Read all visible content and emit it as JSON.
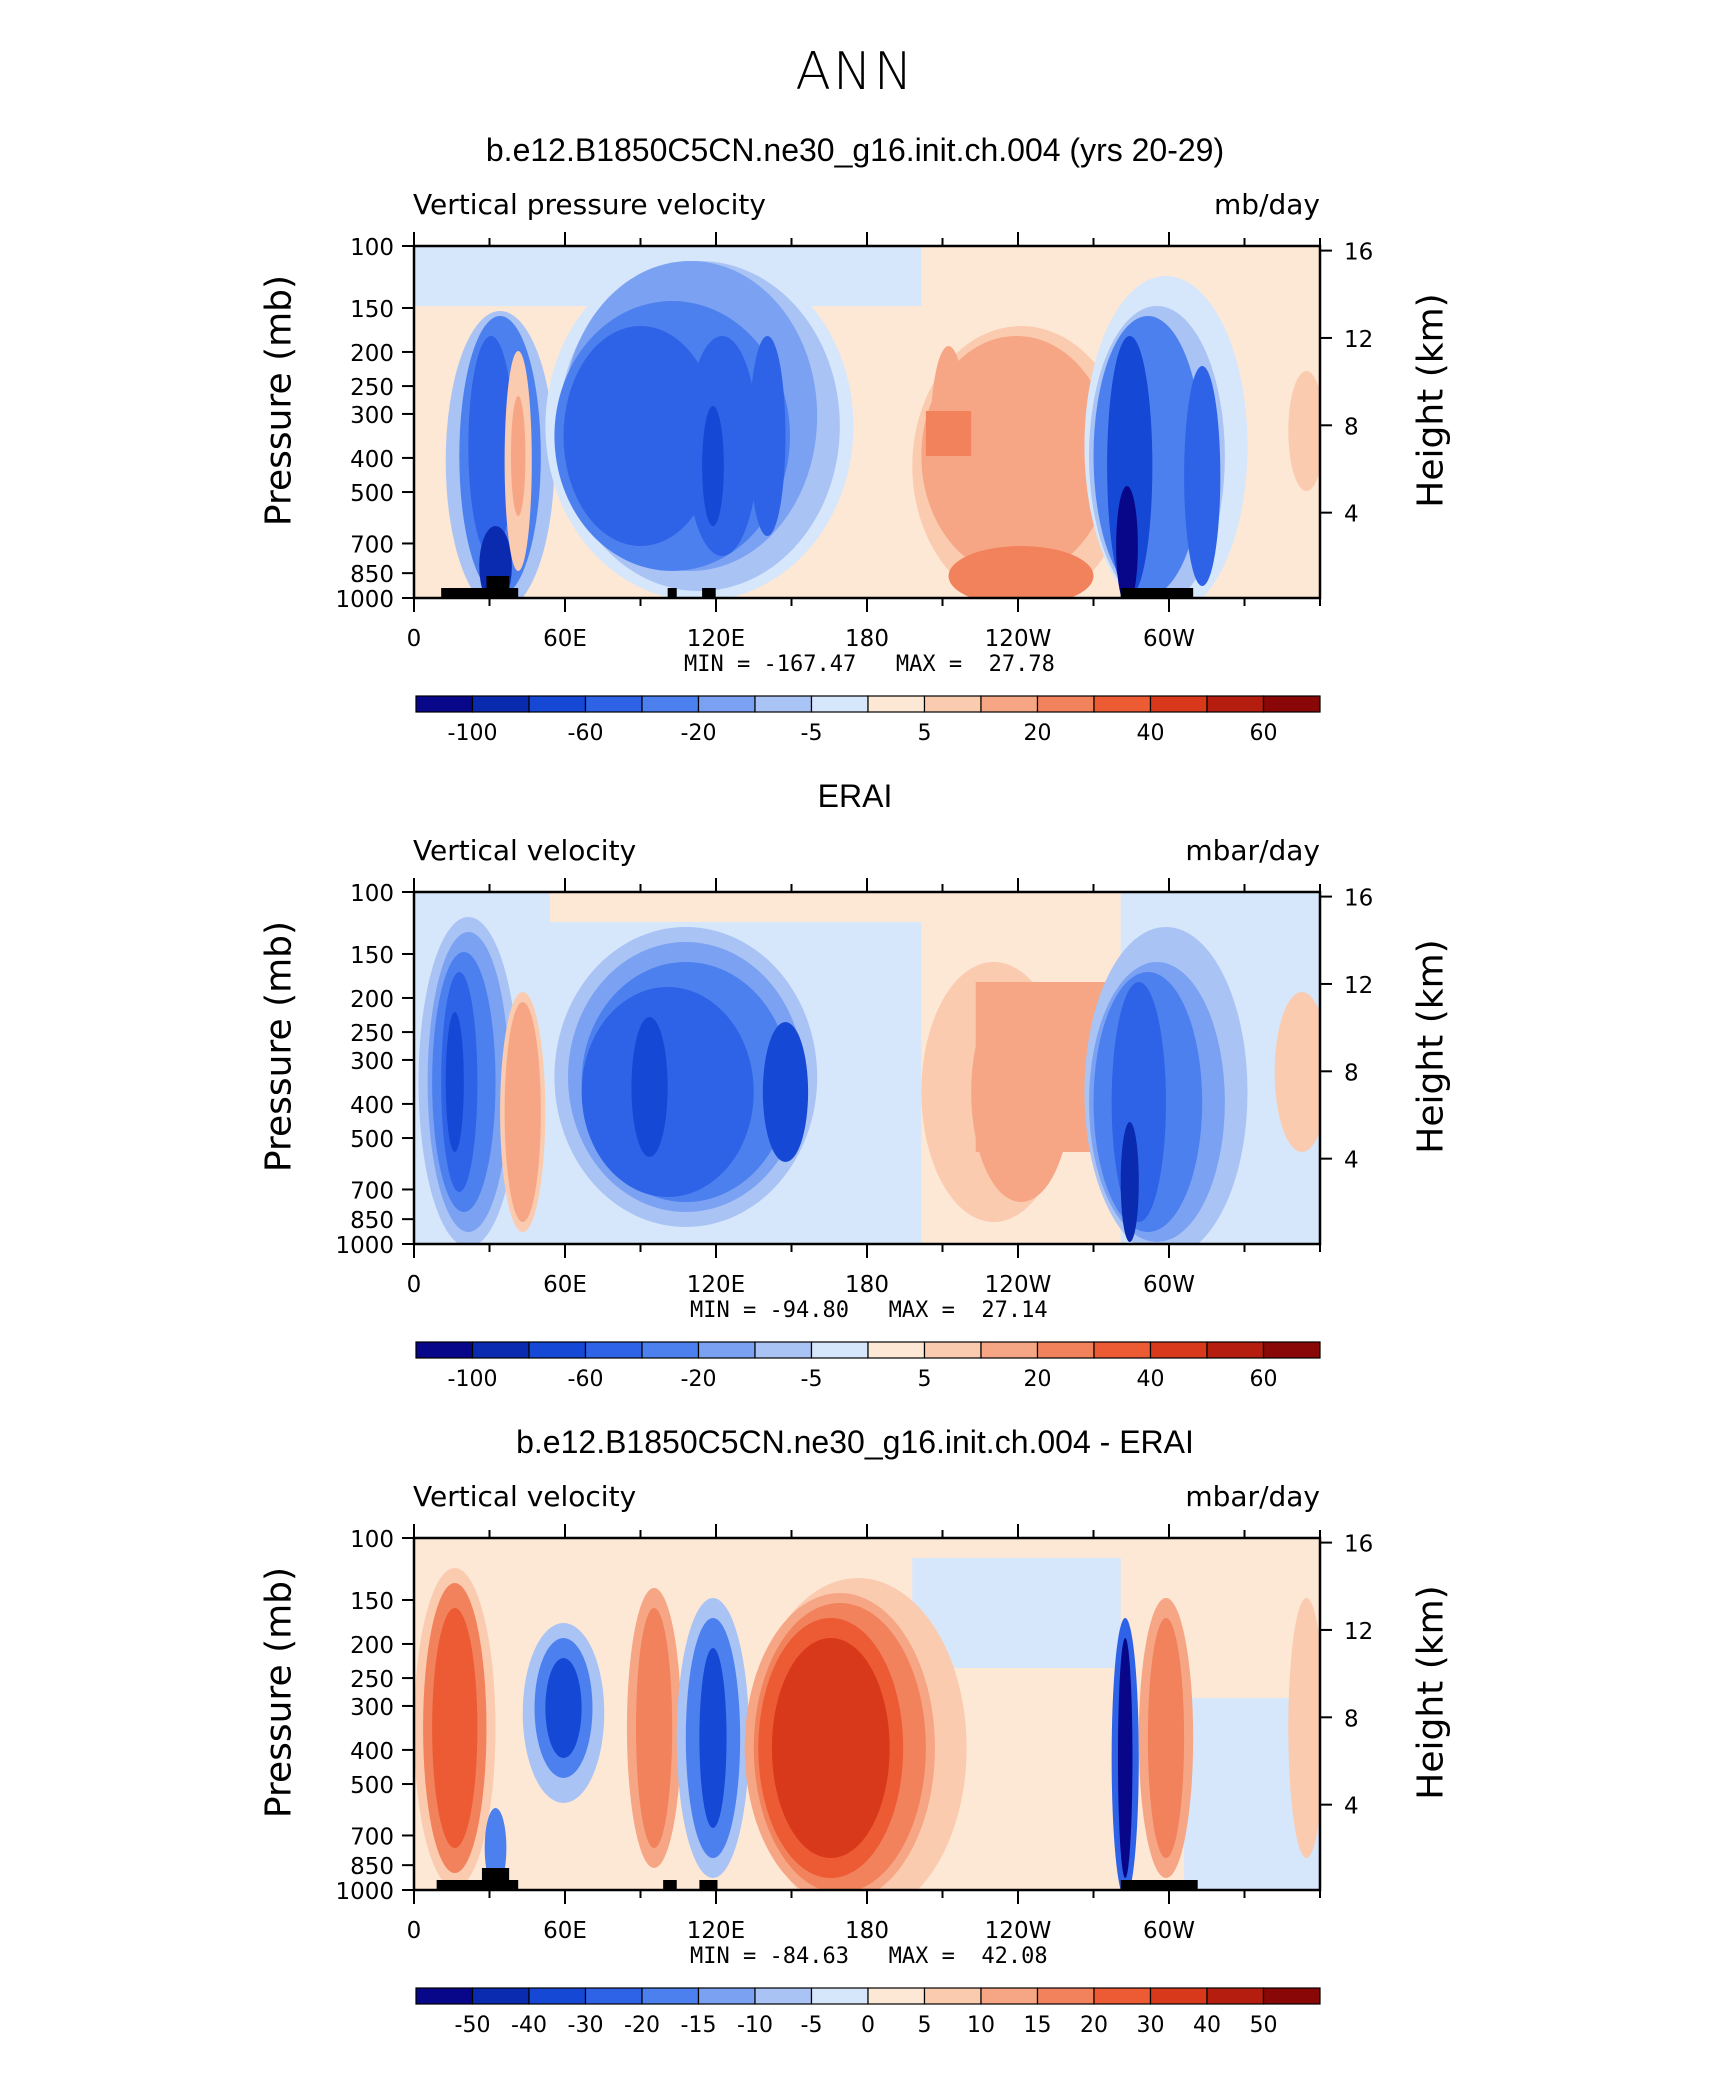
{
  "figure": {
    "title": "ANN"
  },
  "chart_data": [
    {
      "type": "heatmap",
      "panel_title": "b.e12.B1850C5CN.ne30_g16.init.ch.004 (yrs 20-29)",
      "left_string": "Vertical pressure velocity",
      "right_string": "mb/day",
      "ylabel": "Pressure (mb)",
      "ylabel_right": "Height (km)",
      "x_tick_labels": [
        "0",
        "60E",
        "120E",
        "180",
        "120W",
        "60W"
      ],
      "y_ticks": [
        100,
        150,
        200,
        250,
        300,
        400,
        500,
        700,
        850,
        1000
      ],
      "y_right_ticks": [
        4,
        8,
        12,
        16
      ],
      "min_max_text": "MIN = -167.47   MAX =  27.78",
      "colorbar_labels": [
        "-100",
        "-60",
        "-20",
        "-5",
        "5",
        "20",
        "40",
        "60"
      ],
      "colorbar_label_boxes": [
        1,
        3,
        5,
        7,
        9,
        11,
        13,
        15
      ]
    },
    {
      "type": "heatmap",
      "panel_title": "ERAI",
      "left_string": "Vertical velocity",
      "right_string": "mbar/day",
      "ylabel": "Pressure (mb)",
      "ylabel_right": "Height (km)",
      "x_tick_labels": [
        "0",
        "60E",
        "120E",
        "180",
        "120W",
        "60W"
      ],
      "y_ticks": [
        100,
        150,
        200,
        250,
        300,
        400,
        500,
        700,
        850,
        1000
      ],
      "y_right_ticks": [
        4,
        8,
        12,
        16
      ],
      "min_max_text": "MIN = -94.80   MAX =  27.14",
      "colorbar_labels": [
        "-100",
        "-60",
        "-20",
        "-5",
        "5",
        "20",
        "40",
        "60"
      ],
      "colorbar_label_boxes": [
        1,
        3,
        5,
        7,
        9,
        11,
        13,
        15
      ]
    },
    {
      "type": "heatmap",
      "panel_title": "b.e12.B1850C5CN.ne30_g16.init.ch.004 - ERAI",
      "left_string": "Vertical velocity",
      "right_string": "mbar/day",
      "ylabel": "Pressure (mb)",
      "ylabel_right": "Height (km)",
      "x_tick_labels": [
        "0",
        "60E",
        "120E",
        "180",
        "120W",
        "60W"
      ],
      "y_ticks": [
        100,
        150,
        200,
        250,
        300,
        400,
        500,
        700,
        850,
        1000
      ],
      "y_right_ticks": [
        4,
        8,
        12,
        16
      ],
      "min_max_text": "MIN = -84.63   MAX =  42.08",
      "colorbar_labels": [
        "-50",
        "-40",
        "-30",
        "-20",
        "-15",
        "-10",
        "-5",
        "0",
        "5",
        "10",
        "15",
        "20",
        "30",
        "40",
        "50"
      ],
      "colorbar_label_boxes": [
        1,
        2,
        3,
        4,
        5,
        6,
        7,
        8,
        9,
        10,
        11,
        12,
        13,
        14,
        15
      ]
    }
  ],
  "colormap": [
    "#08078a",
    "#0a2bb0",
    "#1648d6",
    "#2e63e8",
    "#4d80ef",
    "#7ba1f2",
    "#aac3f5",
    "#d6e6fb",
    "#fde8d6",
    "#fbcbb0",
    "#f6a684",
    "#f2825c",
    "#ec5b33",
    "#d8391b",
    "#b51d0f",
    "#8a0707"
  ]
}
